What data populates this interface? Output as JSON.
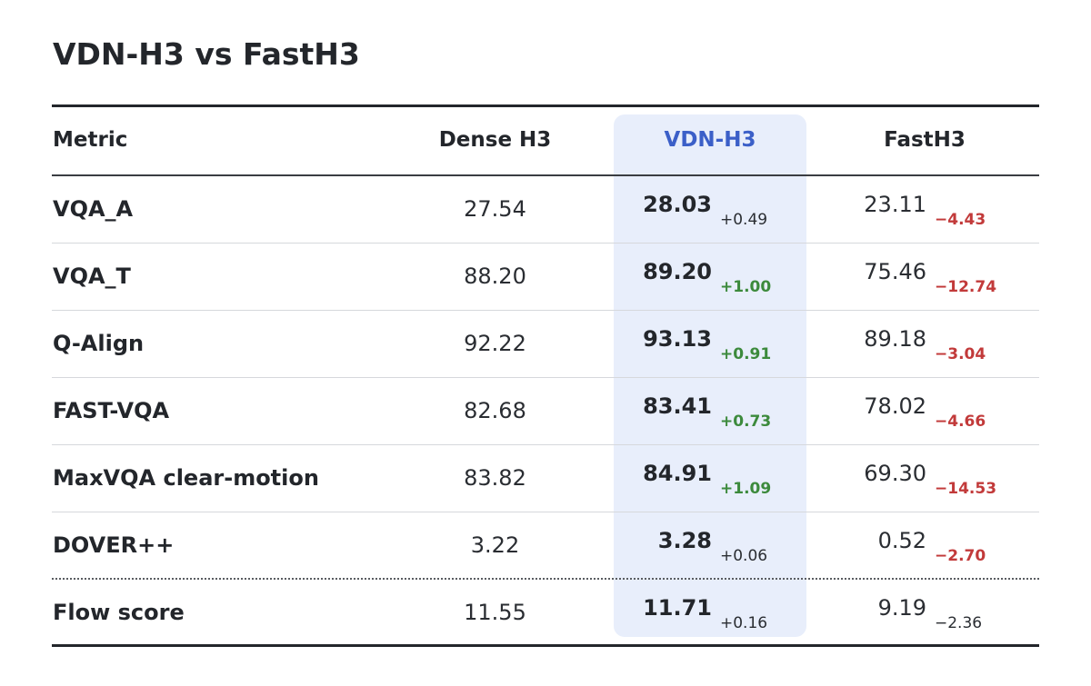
{
  "title": "VDN-H3 vs FastH3",
  "table": {
    "headers": {
      "metric": "Metric",
      "dense": "Dense H3",
      "vdn": "VDN-H3",
      "fast": "FastH3"
    },
    "highlight_color": "#e8eefb",
    "colors": {
      "vdn_header": "#3b5fc8",
      "positive_delta": "#3c8a3c",
      "negative_delta": "#c23a3a"
    },
    "rows": [
      {
        "metric": "VQA_A",
        "dense": "27.54",
        "vdn": "28.03",
        "vdn_delta": "+0.49",
        "vdn_delta_sig": false,
        "fast": "23.11",
        "fast_delta": "−4.43",
        "fast_delta_sig": true
      },
      {
        "metric": "VQA_T",
        "dense": "88.20",
        "vdn": "89.20",
        "vdn_delta": "+1.00",
        "vdn_delta_sig": true,
        "fast": "75.46",
        "fast_delta": "−12.74",
        "fast_delta_sig": true
      },
      {
        "metric": "Q-Align",
        "dense": "92.22",
        "vdn": "93.13",
        "vdn_delta": "+0.91",
        "vdn_delta_sig": true,
        "fast": "89.18",
        "fast_delta": "−3.04",
        "fast_delta_sig": true
      },
      {
        "metric": "FAST-VQA",
        "dense": "82.68",
        "vdn": "83.41",
        "vdn_delta": "+0.73",
        "vdn_delta_sig": true,
        "fast": "78.02",
        "fast_delta": "−4.66",
        "fast_delta_sig": true
      },
      {
        "metric": "MaxVQA clear-motion",
        "dense": "83.82",
        "vdn": "84.91",
        "vdn_delta": "+1.09",
        "vdn_delta_sig": true,
        "fast": "69.30",
        "fast_delta": "−14.53",
        "fast_delta_sig": true
      },
      {
        "metric": "DOVER++",
        "dense": "3.22",
        "vdn": "3.28",
        "vdn_delta": "+0.06",
        "vdn_delta_sig": false,
        "fast": "0.52",
        "fast_delta": "−2.70",
        "fast_delta_sig": true
      },
      {
        "metric": "Flow score",
        "dense": "11.55",
        "vdn": "11.71",
        "vdn_delta": "+0.16",
        "vdn_delta_sig": false,
        "fast": "9.19",
        "fast_delta": "−2.36",
        "fast_delta_sig": false
      }
    ]
  }
}
